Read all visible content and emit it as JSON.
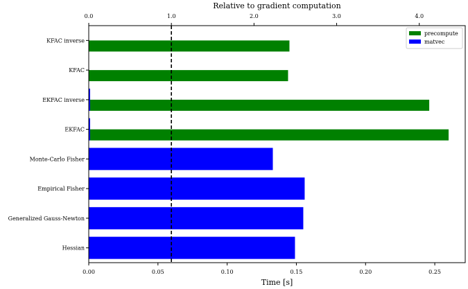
{
  "chart_data": {
    "type": "bar",
    "orientation": "horizontal",
    "stacked": true,
    "categories": [
      "Hessian",
      "Generalized Gauss-Newton",
      "Empirical Fisher",
      "Monte-Carlo Fisher",
      "EKFAC",
      "EKFAC inverse",
      "KFAC",
      "KFAC inverse"
    ],
    "series": [
      {
        "name": "matvec",
        "color": "#0000ff",
        "values": [
          0.149,
          0.155,
          0.156,
          0.133,
          0.001,
          0.001,
          0.0,
          0.0
        ]
      },
      {
        "name": "precompute",
        "color": "#008000",
        "values": [
          0.0,
          0.0,
          0.0,
          0.0,
          0.259,
          0.245,
          0.144,
          0.145
        ]
      }
    ],
    "xlabel": "Time [s]",
    "xlim": [
      0,
      0.272
    ],
    "xticks": [
      "0.00",
      "0.05",
      "0.10",
      "0.15",
      "0.20",
      "0.25"
    ],
    "secondary_xaxis": {
      "label": "Relative to gradient computation",
      "reference_time": 0.0597,
      "ticks": [
        "0.0",
        "1.0",
        "2.0",
        "3.0",
        "4.0"
      ]
    },
    "reference_line": {
      "x": 0.0597,
      "style": "dashed",
      "color": "#000000"
    },
    "legend_position": "top-right",
    "grid": false
  }
}
